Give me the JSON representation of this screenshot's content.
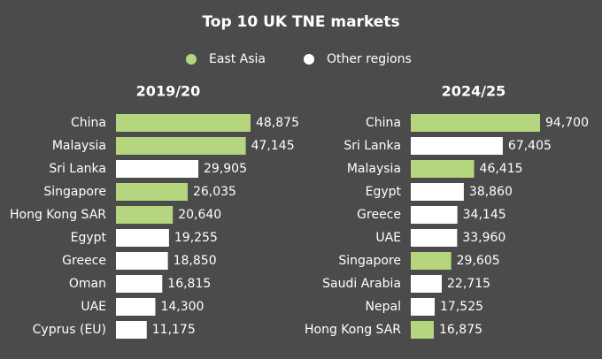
{
  "title": "Top 10 UK TNE markets",
  "legend": [
    {
      "name": "East Asia",
      "color": "#b5d67f"
    },
    {
      "name": "Other regions",
      "color": "#ffffff"
    }
  ],
  "chart_data": [
    {
      "type": "bar",
      "orientation": "horizontal",
      "title": "2019/20",
      "categories": [
        "China",
        "Malaysia",
        "Sri Lanka",
        "Singapore",
        "Hong Kong SAR",
        "Egypt",
        "Greece",
        "Oman",
        "UAE",
        "Cyprus (EU)"
      ],
      "values": [
        48875,
        47145,
        29905,
        26035,
        20640,
        19255,
        18850,
        16815,
        14300,
        11175
      ],
      "value_labels": [
        "48,875",
        "47,145",
        "29,905",
        "26,035",
        "20,640",
        "19,255",
        "18,850",
        "16,815",
        "14,300",
        "11,175"
      ],
      "colors": [
        "#b5d67f",
        "#b5d67f",
        "#ffffff",
        "#b5d67f",
        "#b5d67f",
        "#ffffff",
        "#ffffff",
        "#ffffff",
        "#ffffff",
        "#ffffff"
      ]
    },
    {
      "type": "bar",
      "orientation": "horizontal",
      "title": "2024/25",
      "categories": [
        "China",
        "Sri Lanka",
        "Malaysia",
        "Egypt",
        "Greece",
        "UAE",
        "Singapore",
        "Saudi Arabia",
        "Nepal",
        "Hong Kong SAR"
      ],
      "values": [
        94700,
        67405,
        46415,
        38860,
        34145,
        33960,
        29605,
        22715,
        17525,
        16875
      ],
      "value_labels": [
        "94,700",
        "67,405",
        "46,415",
        "38,860",
        "34,145",
        "33,960",
        "29,605",
        "22,715",
        "17,525",
        "16,875"
      ],
      "colors": [
        "#b5d67f",
        "#ffffff",
        "#b5d67f",
        "#ffffff",
        "#ffffff",
        "#ffffff",
        "#b5d67f",
        "#ffffff",
        "#ffffff",
        "#b5d67f"
      ]
    }
  ]
}
